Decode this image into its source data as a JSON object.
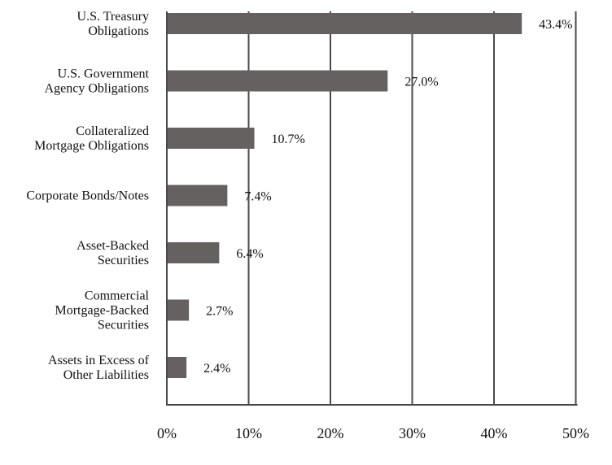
{
  "chart_data": {
    "type": "bar",
    "orientation": "horizontal",
    "categories": [
      [
        "U.S. Treasury",
        "Obligations"
      ],
      [
        "U.S. Government",
        "Agency Obligations"
      ],
      [
        "Collateralized",
        "Mortgage Obligations"
      ],
      [
        "Corporate Bonds/Notes"
      ],
      [
        "Asset-Backed",
        "Securities"
      ],
      [
        "Commercial",
        "Mortgage-Backed",
        "Securities"
      ],
      [
        "Assets in Excess of",
        "Other Liabilities"
      ]
    ],
    "values": [
      43.4,
      27.0,
      10.7,
      7.4,
      6.4,
      2.7,
      2.4
    ],
    "value_labels": [
      "43.4%",
      "27.0%",
      "10.7%",
      "7.4%",
      "6.4%",
      "2.7%",
      "2.4%"
    ],
    "xticks": [
      0,
      10,
      20,
      30,
      40,
      50
    ],
    "xtick_labels": [
      "0%",
      "10%",
      "20%",
      "30%",
      "40%",
      "50%"
    ],
    "xlim": [
      0,
      50
    ],
    "grid": "vertical",
    "bar_color": "#666161",
    "grid_color": "#4a4a4a"
  }
}
